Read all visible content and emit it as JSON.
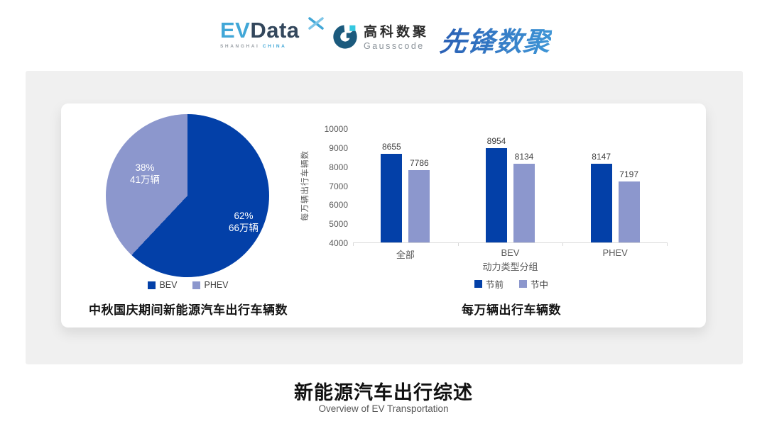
{
  "header": {
    "evdata": {
      "ev": "EV",
      "data": "Data",
      "sub_left": "SHANGHAI",
      "sub_right": "CHINA"
    },
    "gausscode": {
      "name_cn": "高科数聚",
      "name_en": "Gausscode"
    },
    "pioneer": {
      "name": "先锋数聚"
    }
  },
  "colors": {
    "primary": "#0340a8",
    "secondary": "#8c97cd",
    "panel_bg": "#f0f0f0",
    "axis": "#d9d9d9"
  },
  "footer": {
    "title": "新能源汽车出行综述",
    "subtitle": "Overview of EV Transportation"
  },
  "chart_data": [
    {
      "type": "pie",
      "title": "中秋国庆期间新能源汽车出行车辆数",
      "start_angle_deg": 0,
      "legend_position": "bottom",
      "slices": [
        {
          "label": "BEV",
          "percent": 62,
          "percent_label": "62%",
          "amount_label": "66万辆",
          "color": "#0340a8"
        },
        {
          "label": "PHEV",
          "percent": 38,
          "percent_label": "38%",
          "amount_label": "41万辆",
          "color": "#8c97cd"
        }
      ]
    },
    {
      "type": "bar",
      "title": "每万辆出行车辆数",
      "xlabel": "动力类型分组",
      "ylabel": "每万辆出行车辆数",
      "categories": [
        "全部",
        "BEV",
        "PHEV"
      ],
      "series": [
        {
          "name": "节前",
          "color": "#0340a8",
          "values": [
            8655,
            8954,
            8147
          ]
        },
        {
          "name": "节中",
          "color": "#8c97cd",
          "values": [
            7786,
            8134,
            7197
          ]
        }
      ],
      "ylim": [
        4000,
        10000
      ],
      "ytick_step": 1000,
      "grid": false,
      "legend_position": "bottom"
    }
  ]
}
